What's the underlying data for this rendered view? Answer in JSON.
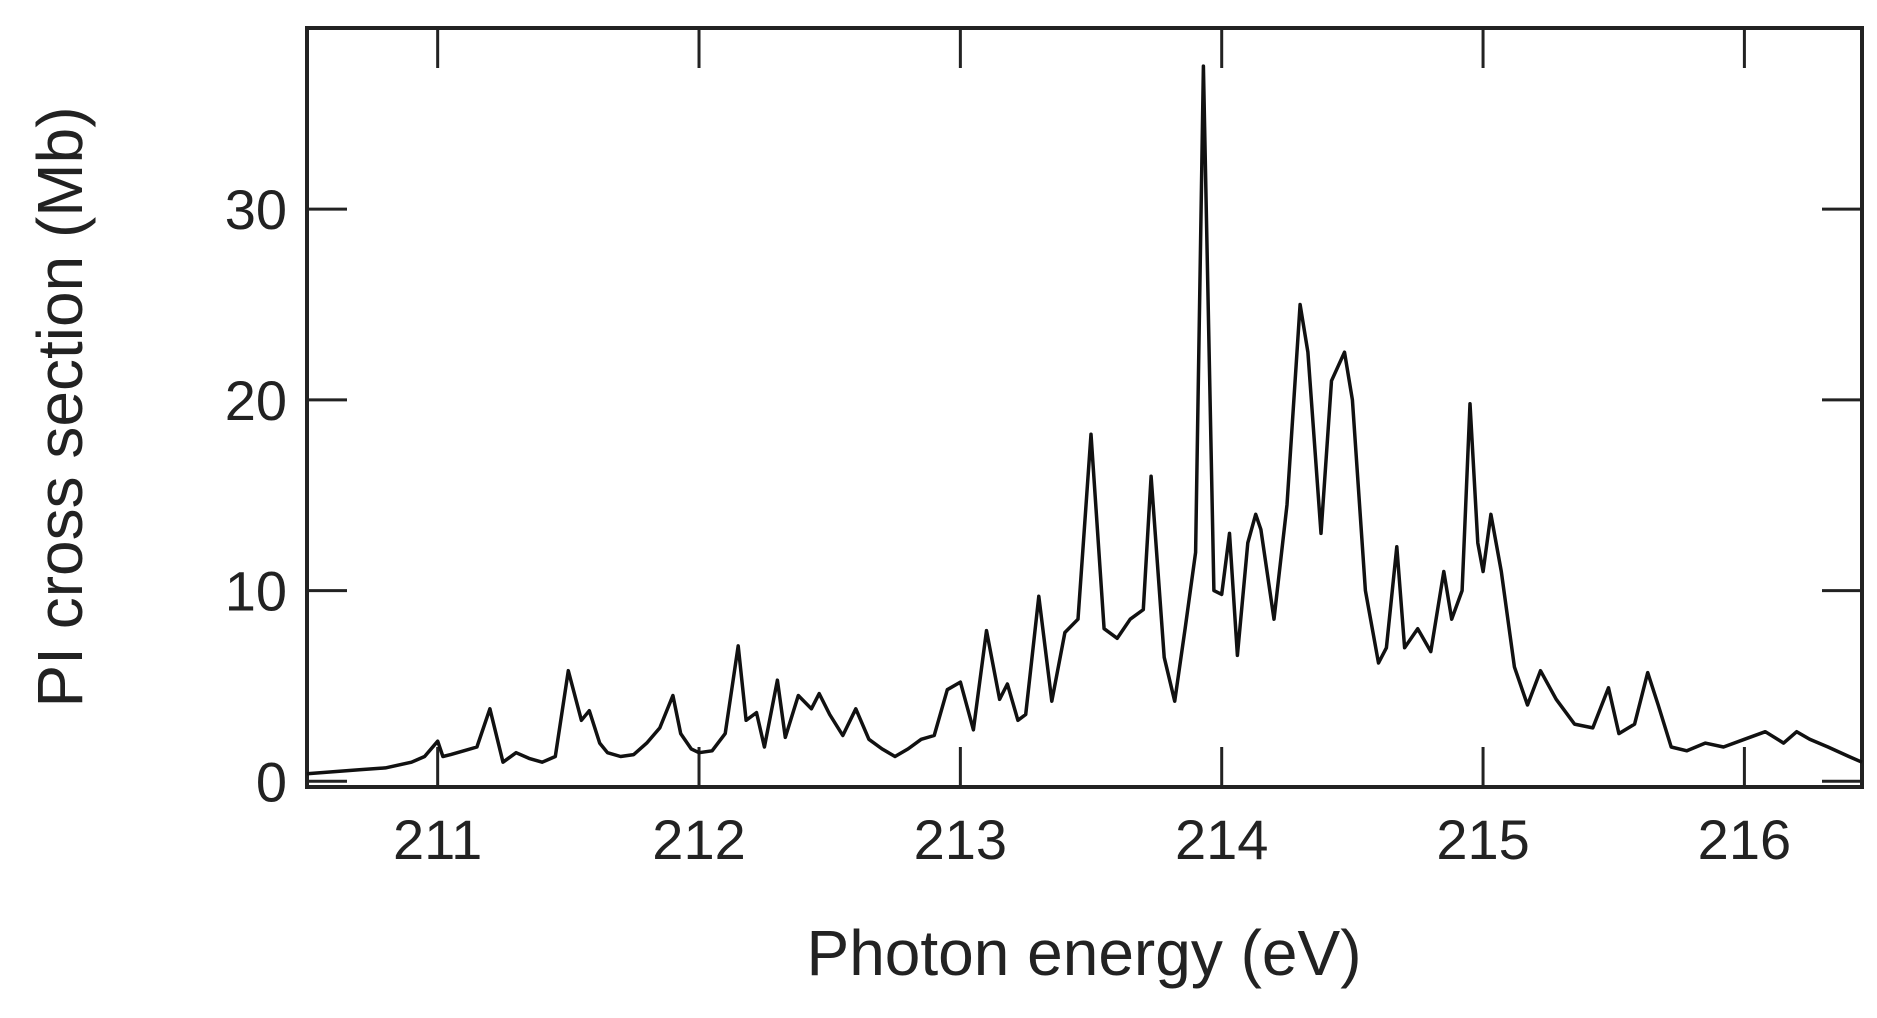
{
  "chart_data": {
    "type": "line",
    "title": "",
    "xlabel": "Photon energy (eV)",
    "ylabel": "PI cross section (Mb)",
    "xlim": [
      210.5,
      216.45
    ],
    "ylim": [
      -0.3,
      39.5
    ],
    "x_ticks": [
      211,
      212,
      213,
      214,
      215,
      216
    ],
    "y_ticks": [
      0,
      10,
      20,
      30
    ],
    "x_tick_labels": [
      "211",
      "212",
      "213",
      "214",
      "215",
      "216"
    ],
    "y_tick_labels": [
      "0",
      "10",
      "20",
      "30"
    ],
    "grid": false,
    "legend": "none",
    "line_color": "#111111",
    "frame_color": "#222222",
    "series": [
      {
        "x": [
          210.5,
          210.6,
          210.7,
          210.8,
          210.9,
          210.95,
          211.0,
          211.02,
          211.05,
          211.1,
          211.15,
          211.2,
          211.25,
          211.3,
          211.35,
          211.4,
          211.45,
          211.5,
          211.55,
          211.58,
          211.62,
          211.65,
          211.7,
          211.75,
          211.8,
          211.85,
          211.9,
          211.93,
          211.97,
          212.0,
          212.05,
          212.1,
          212.15,
          212.18,
          212.22,
          212.25,
          212.3,
          212.33,
          212.38,
          212.43,
          212.46,
          212.5,
          212.55,
          212.6,
          212.65,
          212.7,
          212.75,
          212.8,
          212.85,
          212.9,
          212.95,
          213.0,
          213.05,
          213.1,
          213.15,
          213.18,
          213.22,
          213.25,
          213.3,
          213.35,
          213.4,
          213.45,
          213.5,
          213.55,
          213.6,
          213.65,
          213.7,
          213.73,
          213.78,
          213.82,
          213.86,
          213.9,
          213.93,
          213.97,
          214.0,
          214.03,
          214.06,
          214.1,
          214.13,
          214.15,
          214.2,
          214.25,
          214.3,
          214.33,
          214.38,
          214.42,
          214.47,
          214.5,
          214.55,
          214.6,
          214.63,
          214.67,
          214.7,
          214.75,
          214.8,
          214.85,
          214.88,
          214.92,
          214.95,
          214.98,
          215.0,
          215.03,
          215.07,
          215.12,
          215.17,
          215.22,
          215.28,
          215.35,
          215.42,
          215.48,
          215.52,
          215.58,
          215.63,
          215.67,
          215.72,
          215.78,
          215.85,
          215.92,
          216.0,
          216.08,
          216.15,
          216.2,
          216.25,
          216.32,
          216.4,
          216.45
        ],
        "y": [
          0.4,
          0.5,
          0.6,
          0.7,
          1.0,
          1.3,
          2.1,
          1.3,
          1.4,
          1.6,
          1.8,
          3.8,
          1.0,
          1.5,
          1.2,
          1.0,
          1.3,
          5.8,
          3.2,
          3.7,
          2.0,
          1.5,
          1.3,
          1.4,
          2.0,
          2.8,
          4.5,
          2.5,
          1.7,
          1.5,
          1.6,
          2.5,
          7.1,
          3.2,
          3.6,
          1.8,
          5.3,
          2.3,
          4.5,
          3.8,
          4.6,
          3.5,
          2.4,
          3.8,
          2.2,
          1.7,
          1.3,
          1.7,
          2.2,
          2.4,
          4.8,
          5.2,
          2.7,
          7.9,
          4.3,
          5.1,
          3.2,
          3.5,
          9.7,
          4.2,
          7.8,
          8.5,
          18.2,
          8.0,
          7.5,
          8.5,
          9.0,
          16.0,
          6.5,
          4.2,
          8.0,
          12.0,
          37.5,
          10.0,
          9.8,
          13.0,
          6.6,
          12.5,
          14.0,
          13.2,
          8.5,
          14.5,
          25.0,
          22.5,
          13.0,
          21.0,
          22.5,
          20.0,
          10.0,
          6.2,
          7.0,
          12.3,
          7.0,
          8.0,
          6.8,
          11.0,
          8.5,
          10.0,
          19.8,
          12.5,
          11.0,
          14.0,
          11.0,
          6.0,
          4.0,
          5.8,
          4.3,
          3.0,
          2.8,
          4.9,
          2.5,
          3.0,
          5.7,
          4.0,
          1.8,
          1.6,
          2.0,
          1.8,
          2.2,
          2.6,
          2.0,
          2.6,
          2.2,
          1.8,
          1.3,
          1.0
        ]
      }
    ]
  }
}
